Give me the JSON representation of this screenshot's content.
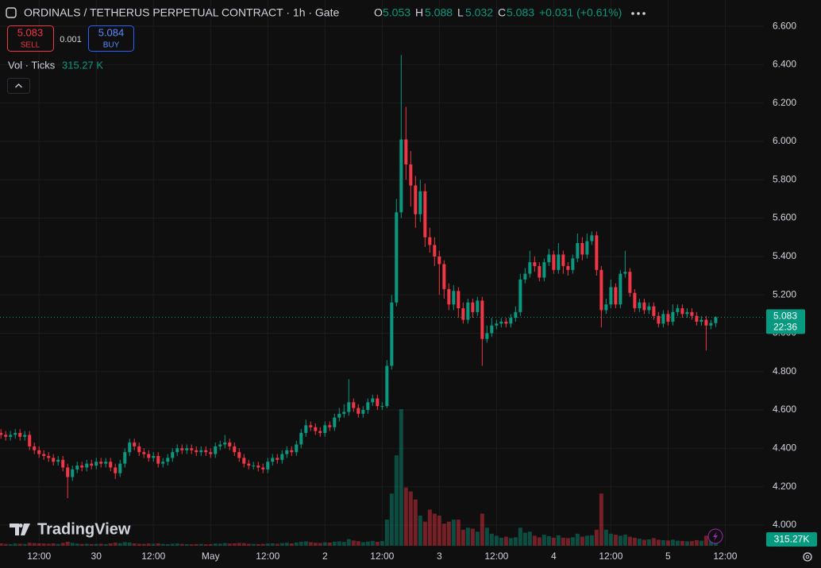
{
  "header": {
    "title": "ORDINALS / TETHERUS PERPETUAL CONTRACT · 1h · Gate",
    "o": "O",
    "h": "H",
    "l": "L",
    "c": "C",
    "change": "+0.031 (+0.61%)",
    "sell": "SELL",
    "buy": "BUY",
    "buy_price": 5.084,
    "spread": 0.001,
    "volume_title": "Vol · Ticks",
    "volume_value": "315.27 K",
    "volume_axis_value": "315.27K",
    "countdown": "22:36",
    "brand": "TradingView"
  },
  "chart_data": {
    "type": "candlestick",
    "up_color": "#089981",
    "down_color": "#f23645",
    "grid": true,
    "ylim": [
      3.892,
      6.737
    ],
    "yticks": [
      {
        "value": 4.0,
        "label": "4.000"
      },
      {
        "value": 4.2,
        "label": "4.200"
      },
      {
        "value": 4.4,
        "label": "4.400"
      },
      {
        "value": 4.6,
        "label": "4.600"
      },
      {
        "value": 4.8,
        "label": "4.800"
      },
      {
        "value": 5.0,
        "label": "5.000"
      },
      {
        "value": 5.2,
        "label": "5.200"
      },
      {
        "value": 5.4,
        "label": "5.400"
      },
      {
        "value": 5.6,
        "label": "5.600"
      },
      {
        "value": 5.8,
        "label": "5.800"
      },
      {
        "value": 6.0,
        "label": "6.000"
      },
      {
        "value": 6.2,
        "label": "6.200"
      },
      {
        "value": 6.4,
        "label": "6.400"
      },
      {
        "value": 6.6,
        "label": "6.600"
      }
    ],
    "xlim": [
      -0.2,
      160.1
    ],
    "xticks": [
      {
        "value": 8,
        "label": "12:00"
      },
      {
        "value": 20,
        "label": "30"
      },
      {
        "value": 32,
        "label": "12:00"
      },
      {
        "value": 44,
        "label": "May"
      },
      {
        "value": 56,
        "label": "12:00"
      },
      {
        "value": 68,
        "label": "2"
      },
      {
        "value": 80,
        "label": "12:00"
      },
      {
        "value": 92,
        "label": "3"
      },
      {
        "value": 104,
        "label": "12:00"
      },
      {
        "value": 116,
        "label": "4"
      },
      {
        "value": 128,
        "label": "12:00"
      },
      {
        "value": 140,
        "label": "5"
      },
      {
        "value": 152,
        "label": "12:00"
      }
    ],
    "open": [
      4.48,
      4.47,
      4.46,
      4.47,
      4.48,
      4.46,
      4.47,
      4.41,
      4.39,
      4.37,
      4.36,
      4.35,
      4.33,
      4.34,
      4.3,
      4.25,
      4.29,
      4.31,
      4.3,
      4.32,
      4.31,
      4.33,
      4.32,
      4.33,
      4.3,
      4.27,
      4.32,
      4.38,
      4.43,
      4.41,
      4.38,
      4.37,
      4.35,
      4.36,
      4.32,
      4.33,
      4.35,
      4.38,
      4.4,
      4.39,
      4.4,
      4.39,
      4.38,
      4.39,
      4.38,
      4.37,
      4.41,
      4.42,
      4.43,
      4.41,
      4.38,
      4.35,
      4.32,
      4.31,
      4.31,
      4.3,
      4.29,
      4.33,
      4.35,
      4.34,
      4.37,
      4.39,
      4.38,
      4.42,
      4.48,
      4.52,
      4.51,
      4.49,
      4.48,
      4.52,
      4.51,
      4.56,
      4.58,
      4.59,
      4.64,
      4.61,
      4.58,
      4.6,
      4.64,
      4.66,
      4.62,
      4.62,
      4.83,
      5.16,
      5.63,
      6.01,
      5.88,
      5.77,
      5.62,
      5.74,
      5.5,
      5.46,
      5.4,
      5.36,
      5.23,
      5.15,
      5.22,
      5.13,
      5.07,
      5.16,
      5.11,
      5.17,
      4.97,
      5.0,
      5.04,
      5.05,
      5.06,
      5.05,
      5.08,
      5.11,
      5.28,
      5.31,
      5.37,
      5.35,
      5.29,
      5.37,
      5.41,
      5.33,
      5.41,
      5.35,
      5.33,
      5.39,
      5.47,
      5.41,
      5.48,
      5.51,
      5.33,
      5.12,
      5.15,
      5.24,
      5.15,
      5.31,
      5.32,
      5.21,
      5.13,
      5.16,
      5.12,
      5.14,
      5.09,
      5.05,
      5.1,
      5.06,
      5.11,
      5.13,
      5.1,
      5.11,
      5.09,
      5.06,
      5.07,
      5.04,
      5.053
    ],
    "high": [
      4.5,
      4.49,
      4.49,
      4.5,
      4.5,
      4.49,
      4.49,
      4.43,
      4.41,
      4.39,
      4.38,
      4.37,
      4.36,
      4.36,
      4.32,
      4.31,
      4.33,
      4.33,
      4.34,
      4.34,
      4.35,
      4.35,
      4.35,
      4.35,
      4.32,
      4.34,
      4.4,
      4.45,
      4.45,
      4.43,
      4.4,
      4.39,
      4.38,
      4.38,
      4.35,
      4.37,
      4.4,
      4.42,
      4.42,
      4.42,
      4.42,
      4.41,
      4.41,
      4.41,
      4.4,
      4.43,
      4.44,
      4.47,
      4.45,
      4.43,
      4.4,
      4.37,
      4.34,
      4.33,
      4.33,
      4.32,
      4.35,
      4.37,
      4.37,
      4.39,
      4.41,
      4.41,
      4.44,
      4.5,
      4.55,
      4.54,
      4.53,
      4.51,
      4.54,
      4.54,
      4.58,
      4.61,
      4.63,
      4.76,
      4.66,
      4.63,
      4.62,
      4.66,
      4.68,
      4.68,
      4.64,
      4.86,
      5.2,
      5.7,
      6.45,
      6.18,
      5.95,
      5.82,
      5.8,
      5.78,
      5.55,
      5.5,
      5.43,
      5.38,
      5.26,
      5.25,
      5.24,
      5.16,
      5.18,
      5.18,
      5.19,
      5.19,
      5.04,
      5.08,
      5.07,
      5.08,
      5.08,
      5.1,
      5.14,
      5.31,
      5.34,
      5.43,
      5.4,
      5.37,
      5.39,
      5.44,
      5.43,
      5.47,
      5.43,
      5.37,
      5.41,
      5.52,
      5.5,
      5.52,
      5.53,
      5.53,
      5.35,
      5.18,
      5.28,
      5.26,
      5.33,
      5.43,
      5.34,
      5.23,
      5.18,
      5.18,
      5.16,
      5.16,
      5.11,
      5.12,
      5.12,
      5.15,
      5.15,
      5.15,
      5.13,
      5.13,
      5.11,
      5.09,
      5.09,
      5.07,
      5.088
    ],
    "low": [
      4.45,
      4.44,
      4.44,
      4.45,
      4.44,
      4.44,
      4.39,
      4.37,
      4.35,
      4.34,
      4.33,
      4.31,
      4.31,
      4.28,
      4.14,
      4.23,
      4.27,
      4.28,
      4.28,
      4.29,
      4.29,
      4.3,
      4.3,
      4.28,
      4.24,
      4.25,
      4.3,
      4.36,
      4.39,
      4.36,
      4.35,
      4.33,
      4.33,
      4.3,
      4.3,
      4.31,
      4.33,
      4.36,
      4.37,
      4.37,
      4.37,
      4.36,
      4.36,
      4.36,
      4.35,
      4.35,
      4.39,
      4.4,
      4.39,
      4.36,
      4.33,
      4.3,
      4.29,
      4.29,
      4.28,
      4.27,
      4.27,
      4.31,
      4.32,
      4.32,
      4.35,
      4.36,
      4.36,
      4.4,
      4.46,
      4.49,
      4.47,
      4.46,
      4.46,
      4.49,
      4.49,
      4.54,
      4.56,
      4.57,
      4.59,
      4.56,
      4.56,
      4.58,
      4.62,
      4.6,
      4.6,
      4.61,
      4.81,
      5.14,
      5.6,
      5.8,
      5.66,
      5.55,
      5.58,
      5.45,
      5.42,
      5.35,
      5.2,
      5.18,
      5.12,
      5.12,
      5.08,
      5.05,
      5.05,
      5.08,
      5.09,
      4.83,
      4.95,
      4.98,
      5.02,
      5.03,
      5.03,
      5.03,
      5.06,
      5.09,
      5.26,
      5.29,
      5.32,
      5.27,
      5.27,
      5.35,
      5.31,
      5.31,
      5.31,
      5.3,
      5.31,
      5.37,
      5.38,
      5.39,
      5.46,
      5.3,
      5.03,
      5.1,
      5.13,
      5.13,
      5.13,
      5.29,
      5.19,
      5.11,
      5.11,
      5.1,
      5.1,
      5.07,
      5.03,
      5.03,
      5.04,
      5.04,
      5.09,
      5.08,
      5.08,
      5.07,
      5.04,
      5.04,
      4.91,
      5.02,
      5.032
    ],
    "close": [
      4.47,
      4.46,
      4.47,
      4.48,
      4.46,
      4.47,
      4.41,
      4.39,
      4.37,
      4.36,
      4.35,
      4.33,
      4.34,
      4.3,
      4.25,
      4.29,
      4.31,
      4.3,
      4.32,
      4.31,
      4.33,
      4.32,
      4.33,
      4.3,
      4.27,
      4.32,
      4.38,
      4.43,
      4.41,
      4.38,
      4.37,
      4.35,
      4.36,
      4.32,
      4.33,
      4.35,
      4.38,
      4.4,
      4.39,
      4.4,
      4.39,
      4.38,
      4.39,
      4.38,
      4.37,
      4.41,
      4.42,
      4.43,
      4.41,
      4.38,
      4.35,
      4.32,
      4.31,
      4.31,
      4.3,
      4.29,
      4.33,
      4.35,
      4.34,
      4.37,
      4.39,
      4.38,
      4.42,
      4.48,
      4.52,
      4.51,
      4.49,
      4.48,
      4.52,
      4.51,
      4.56,
      4.58,
      4.59,
      4.64,
      4.61,
      4.58,
      4.6,
      4.64,
      4.66,
      4.62,
      4.62,
      4.83,
      5.16,
      5.63,
      6.01,
      5.88,
      5.77,
      5.62,
      5.74,
      5.5,
      5.46,
      5.4,
      5.36,
      5.23,
      5.15,
      5.22,
      5.13,
      5.07,
      5.16,
      5.11,
      5.17,
      4.97,
      5.0,
      5.04,
      5.05,
      5.06,
      5.05,
      5.08,
      5.11,
      5.28,
      5.31,
      5.37,
      5.35,
      5.29,
      5.37,
      5.41,
      5.33,
      5.41,
      5.35,
      5.33,
      5.39,
      5.47,
      5.41,
      5.48,
      5.51,
      5.33,
      5.12,
      5.15,
      5.24,
      5.15,
      5.31,
      5.32,
      5.21,
      5.13,
      5.16,
      5.12,
      5.14,
      5.09,
      5.05,
      5.1,
      5.06,
      5.11,
      5.13,
      5.1,
      5.11,
      5.09,
      5.06,
      5.07,
      5.04,
      5.053,
      5.083
    ],
    "volume": [
      120,
      90,
      80,
      110,
      100,
      90,
      150,
      130,
      120,
      110,
      100,
      120,
      90,
      140,
      200,
      150,
      110,
      90,
      100,
      80,
      90,
      100,
      80,
      120,
      150,
      130,
      180,
      160,
      120,
      100,
      90,
      110,
      100,
      120,
      90,
      80,
      100,
      110,
      90,
      80,
      70,
      80,
      90,
      70,
      80,
      110,
      100,
      130,
      110,
      120,
      140,
      130,
      100,
      90,
      80,
      90,
      110,
      120,
      100,
      130,
      150,
      120,
      160,
      200,
      220,
      180,
      150,
      140,
      170,
      160,
      200,
      220,
      190,
      330,
      260,
      230,
      180,
      210,
      240,
      200,
      230,
      1300,
      2600,
      4500,
      6800,
      2900,
      2700,
      2300,
      1500,
      1200,
      1800,
      1600,
      1500,
      1100,
      1200,
      1300,
      1300,
      800,
      900,
      850,
      700,
      1600,
      900,
      600,
      500,
      400,
      450,
      380,
      420,
      900,
      650,
      700,
      500,
      420,
      550,
      480,
      400,
      520,
      400,
      380,
      420,
      600,
      450,
      500,
      520,
      800,
      2600,
      800,
      600,
      550,
      500,
      550,
      450,
      400,
      350,
      300,
      320,
      380,
      300,
      280,
      260,
      300,
      250,
      240,
      220,
      230,
      280,
      250,
      500,
      280,
      315.27
    ]
  }
}
